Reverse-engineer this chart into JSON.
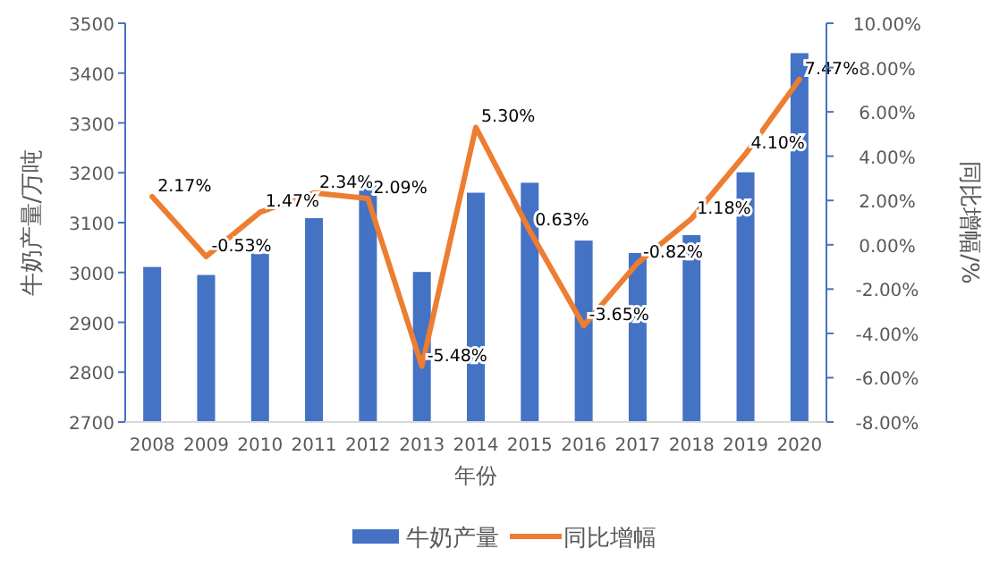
{
  "chart_data": {
    "type": "bar",
    "xlabel": "年份",
    "ylabel": "牛奶产量/万吨",
    "y2label": "同比增幅/%",
    "categories": [
      "2008",
      "2009",
      "2010",
      "2011",
      "2012",
      "2013",
      "2014",
      "2015",
      "2016",
      "2017",
      "2018",
      "2019",
      "2020"
    ],
    "series": [
      {
        "name": "牛奶产量",
        "color": "#4472c4",
        "values": [
          3011,
          2995,
          3038,
          3109,
          3175,
          3001,
          3160,
          3180,
          3064,
          3039,
          3075,
          3201,
          3440
        ]
      },
      {
        "name": "同比增幅",
        "type": "line",
        "axis": "y2",
        "color": "#ed7d31",
        "values": [
          2.17,
          -0.53,
          1.47,
          2.34,
          2.09,
          -5.48,
          5.3,
          0.63,
          -3.65,
          -0.82,
          1.18,
          4.1,
          7.47
        ],
        "value_labels": [
          "2.17%",
          "-0.53%",
          "1.47%",
          "2.34%",
          "2.09%",
          "-5.48%",
          "5.30%",
          "0.63%",
          "-3.65%",
          "-0.82%",
          "1.18%",
          "4.10%",
          "7.47%"
        ]
      }
    ],
    "ylim": [
      2700,
      3500
    ],
    "yticks": [
      2700,
      2800,
      2900,
      3000,
      3100,
      3200,
      3300,
      3400,
      3500
    ],
    "y2lim": [
      -8,
      10
    ],
    "y2ticks": [
      {
        "value": -8,
        "label": "-8.00%"
      },
      {
        "value": -6,
        "label": "-6.00%"
      },
      {
        "value": -4,
        "label": "-4.00%"
      },
      {
        "value": -2,
        "label": "-2.00%"
      },
      {
        "value": 0,
        "label": "0.00%"
      },
      {
        "value": 2,
        "label": "2.00%"
      },
      {
        "value": 4,
        "label": "4.00%"
      },
      {
        "value": 6,
        "label": "6.00%"
      },
      {
        "value": 8,
        "label": "8.00%"
      },
      {
        "value": 10,
        "label": "10.00%"
      }
    ],
    "legend": "bottom",
    "grid": false,
    "marker": "none",
    "line_style": "solid"
  }
}
